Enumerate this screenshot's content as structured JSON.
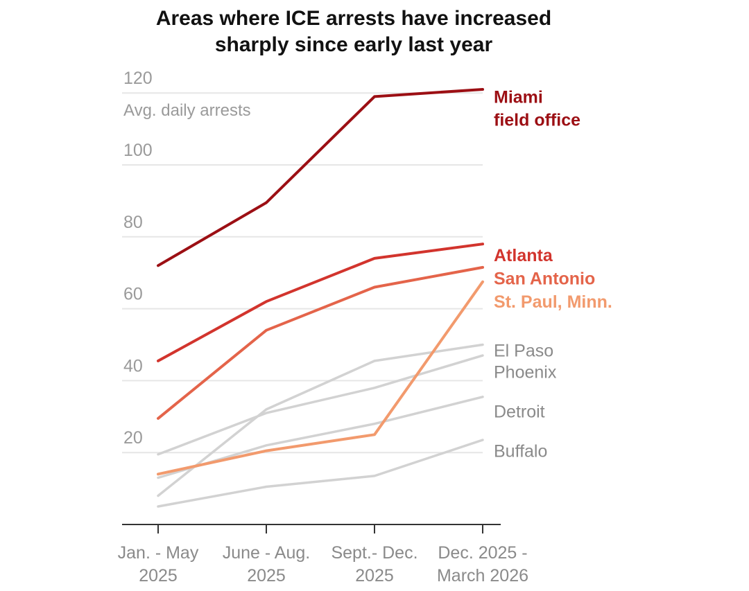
{
  "chart_data": {
    "type": "line",
    "title_lines": [
      "Areas where ICE arrests have increased",
      "sharply since early last year"
    ],
    "ylabel": "Avg. daily arrests",
    "ylim": [
      0,
      120
    ],
    "yticks": [
      "20",
      "40",
      "60",
      "80",
      "100",
      "120"
    ],
    "x": [
      [
        "Jan. - May",
        "2025"
      ],
      [
        "June - Aug.",
        "2025"
      ],
      [
        "Sept.- Dec.",
        "2025"
      ],
      [
        "Dec. 2025 -",
        "March 2026"
      ]
    ],
    "grid": true,
    "series": [
      {
        "name": "",
        "values": [
          19.5,
          31,
          38,
          47
        ],
        "color": "#d2d2d2",
        "highlight": false
      },
      {
        "name": "",
        "values": [
          8,
          32,
          45.5,
          50
        ],
        "color": "#d2d2d2",
        "highlight": false
      },
      {
        "name": "",
        "values": [
          13,
          22,
          28,
          35.5
        ],
        "color": "#d2d2d2",
        "highlight": false
      },
      {
        "name": "",
        "values": [
          5,
          10.5,
          13.5,
          23.5
        ],
        "color": "#d2d2d2",
        "highlight": false
      },
      {
        "name": "",
        "values": [
          14,
          20.5,
          25,
          67.5
        ],
        "color": "#f29a6d",
        "highlight": true
      },
      {
        "name": "",
        "values": [
          29.5,
          54,
          66,
          71.5
        ],
        "color": "#e4644a",
        "highlight": true
      },
      {
        "name": "",
        "values": [
          45.5,
          62,
          74,
          78
        ],
        "color": "#d2342d",
        "highlight": true
      },
      {
        "name": "",
        "values": [
          72,
          89.5,
          119,
          121
        ],
        "color": "#9c0f14",
        "highlight": true
      }
    ],
    "labels": [
      {
        "lines": [
          "Miami",
          "field office"
        ],
        "color": "#9c0f14",
        "bold": true,
        "anchor_value": 119
      },
      {
        "lines": [
          "Atlanta"
        ],
        "color": "#d2342d",
        "bold": true,
        "anchor_value": 75
      },
      {
        "lines": [
          "San Antonio"
        ],
        "color": "#e4644a",
        "bold": true,
        "anchor_value": 68.5
      },
      {
        "lines": [
          "St. Paul, Minn."
        ],
        "color": "#f29a6d",
        "bold": true,
        "anchor_value": 62
      },
      {
        "lines": [
          "El Paso"
        ],
        "color": "#8a8a8a",
        "bold": false,
        "anchor_value": 48.5
      },
      {
        "lines": [
          "Phoenix"
        ],
        "color": "#8a8a8a",
        "bold": false,
        "anchor_value": 42.5
      },
      {
        "lines": [
          "Detroit"
        ],
        "color": "#8a8a8a",
        "bold": false,
        "anchor_value": 31.5
      },
      {
        "lines": [
          "Buffalo"
        ],
        "color": "#8a8a8a",
        "bold": false,
        "anchor_value": 20.5
      }
    ]
  }
}
